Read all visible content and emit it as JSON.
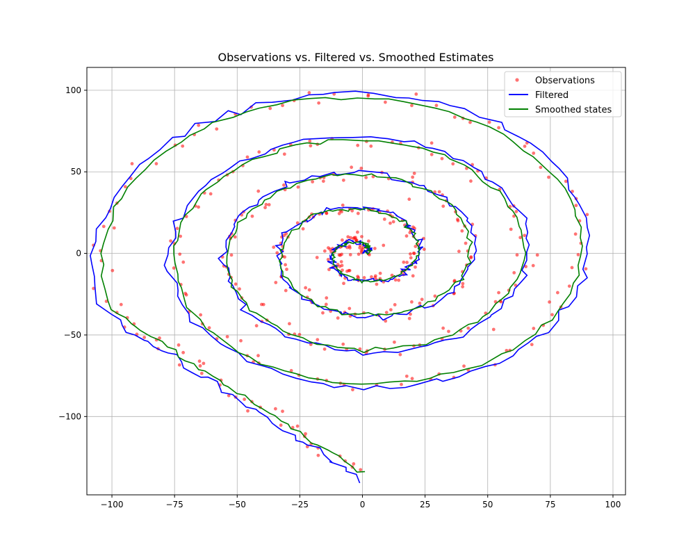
{
  "chart_data": {
    "type": "line",
    "title": "Observations vs. Filtered vs. Smoothed Estimates",
    "xlabel": "",
    "ylabel": "",
    "xlim": [
      -110,
      105
    ],
    "ylim": [
      -148,
      114
    ],
    "xticks": [
      -100,
      -75,
      -50,
      -25,
      0,
      25,
      50,
      75,
      100
    ],
    "yticks": [
      -100,
      -50,
      0,
      50,
      100
    ],
    "xtick_labels": [
      "−100",
      "−75",
      "−50",
      "−25",
      "0",
      "25",
      "50",
      "75",
      "100"
    ],
    "ytick_labels": [
      "−100",
      "−50",
      "0",
      "50",
      "100"
    ],
    "grid": true,
    "legend_position": "top-right",
    "legend": [
      "Observations",
      "Filtered",
      "Smoothed states"
    ],
    "series": [
      {
        "name": "Observations",
        "kind": "scatter",
        "color": "#ff0000",
        "opacity": 0.55,
        "description_pattern": "noisy points along spiral path"
      },
      {
        "name": "Filtered",
        "kind": "line",
        "color": "#0000ff"
      },
      {
        "name": "Smoothed states",
        "kind": "line",
        "color": "#008000"
      }
    ],
    "trajectory": {
      "start": [
        0,
        -135
      ],
      "tail_end": [
        -100,
        -35
      ],
      "spiral_center": [
        0,
        0
      ],
      "max_radius": 97,
      "loops": 4.5
    }
  }
}
